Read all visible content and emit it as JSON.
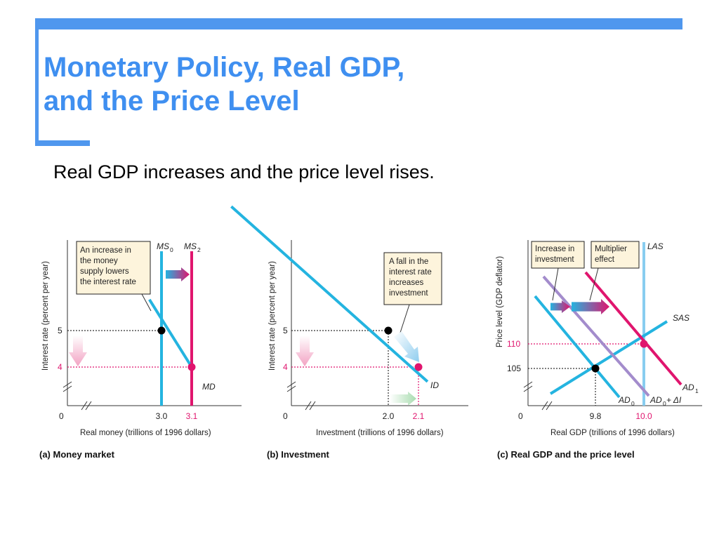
{
  "slide": {
    "title_line1": "Monetary Policy, Real GDP,",
    "title_line2": "and the Price Level",
    "subtitle": "Real GDP increases and the price level rises."
  },
  "colors": {
    "accent": "#3f8ff0",
    "cyan": "#24b4e0",
    "magenta": "#e0156e",
    "purple": "#a38ccc",
    "lightblue": "#88cdf0",
    "annotation_fill": "#fdf4dc"
  },
  "chart_data": [
    {
      "type": "line",
      "panel_title": "(a) Money market",
      "xlabel": "Real money (trillions of 1996 dollars)",
      "ylabel": "Interest rate (percent per year)",
      "origin_label": "0",
      "x_ticks": [
        "3.0",
        "3.1"
      ],
      "y_ticks": [
        "5",
        "4"
      ],
      "lines": [
        {
          "name": "MS0",
          "label": "MS",
          "sub": "0",
          "x": 3.0,
          "color": "cyan"
        },
        {
          "name": "MS2",
          "label": "MS",
          "sub": "2",
          "x": 3.1,
          "color": "magenta"
        },
        {
          "name": "MD",
          "label": "MD",
          "points": [
            [
              2.96,
              5.85
            ],
            [
              3.1,
              4.0
            ]
          ],
          "color": "cyan"
        }
      ],
      "equilibria": [
        {
          "x": 3.0,
          "y": 5
        },
        {
          "x": 3.1,
          "y": 4
        }
      ],
      "annotation": [
        "An increase in",
        "the money",
        "supply lowers",
        "the interest rate"
      ],
      "axes_broken": true
    },
    {
      "type": "line",
      "panel_title": "(b) Investment",
      "xlabel": "Investment (trillions of 1996 dollars)",
      "ylabel": "Interest rate (percent per year)",
      "origin_label": "0",
      "x_ticks": [
        "2.0",
        "2.1"
      ],
      "y_ticks": [
        "5",
        "4"
      ],
      "lines": [
        {
          "name": "ID",
          "label": "ID",
          "points": [
            [
              1.48,
              8.4
            ],
            [
              2.13,
              3.6
            ]
          ],
          "color": "cyan"
        }
      ],
      "equilibria": [
        {
          "x": 2.0,
          "y": 5
        },
        {
          "x": 2.1,
          "y": 4
        }
      ],
      "annotation": [
        "A fall in the",
        "interest rate",
        "increases",
        "investment"
      ],
      "axes_broken": true
    },
    {
      "type": "line",
      "panel_title": "(c) Real GDP and the price level",
      "xlabel": "Real GDP (trillions of 1996 dollars)",
      "ylabel": "Price level (GDP deflator)",
      "origin_label": "0",
      "x_ticks": [
        "9.8",
        "10.0"
      ],
      "y_ticks": [
        "110",
        "105"
      ],
      "lines": [
        {
          "name": "LAS",
          "label": "LAS",
          "x": 10.0,
          "color": "lightblue"
        },
        {
          "name": "SAS",
          "label": "SAS",
          "color": "cyan"
        },
        {
          "name": "AD0",
          "label": "AD",
          "sub": "0",
          "color": "cyan"
        },
        {
          "name": "AD0+dI",
          "label": "AD",
          "sub": "0",
          "suffix": " + ΔI",
          "color": "purple"
        },
        {
          "name": "AD1",
          "label": "AD",
          "sub": "1",
          "color": "magenta"
        }
      ],
      "equilibria": [
        {
          "x": 9.8,
          "y": 105
        },
        {
          "x": 10.0,
          "y": 110
        }
      ],
      "annotations": [
        [
          "Increase in",
          "investment"
        ],
        [
          "Multiplier",
          "effect"
        ]
      ],
      "axes_broken": true
    }
  ]
}
